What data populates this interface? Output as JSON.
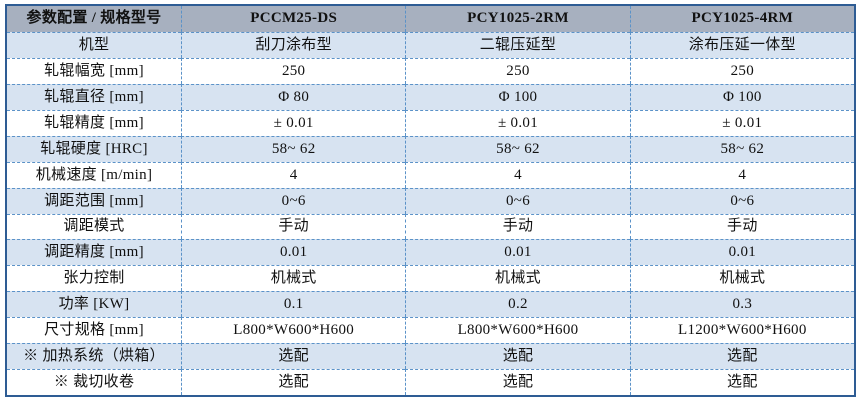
{
  "colors": {
    "header-bg": "#a7b0bf",
    "row-alt-bg": "#d7e3f1",
    "outer-border": "#2e5c94",
    "grid-dash": "#5b92c8",
    "text": "#111111"
  },
  "table": {
    "header": [
      "参数配置 / 规格型号",
      "PCCM25-DS",
      "PCY1025-2RM",
      "PCY1025-4RM"
    ],
    "rows": [
      {
        "label": "机型",
        "values": [
          "刮刀涂布型",
          "二辊压延型",
          "涂布压延一体型"
        ]
      },
      {
        "label": "轧辊幅宽 [mm]",
        "values": [
          "250",
          "250",
          "250"
        ]
      },
      {
        "label": "轧辊直径 [mm]",
        "values": [
          "Φ 80",
          "Φ 100",
          "Φ 100"
        ]
      },
      {
        "label": "轧辊精度 [mm]",
        "values": [
          "± 0.01",
          "± 0.01",
          "± 0.01"
        ]
      },
      {
        "label": "轧辊硬度 [HRC]",
        "values": [
          "58~ 62",
          "58~ 62",
          "58~ 62"
        ]
      },
      {
        "label": "机械速度 [m/min]",
        "values": [
          "4",
          "4",
          "4"
        ]
      },
      {
        "label": "调距范围 [mm]",
        "values": [
          "0~6",
          "0~6",
          "0~6"
        ]
      },
      {
        "label": "调距模式",
        "values": [
          "手动",
          "手动",
          "手动"
        ]
      },
      {
        "label": "调距精度 [mm]",
        "values": [
          "0.01",
          "0.01",
          "0.01"
        ]
      },
      {
        "label": "张力控制",
        "values": [
          "机械式",
          "机械式",
          "机械式"
        ]
      },
      {
        "label": "功率 [KW]",
        "values": [
          "0.1",
          "0.2",
          "0.3"
        ]
      },
      {
        "label": "尺寸规格 [mm]",
        "values": [
          "L800*W600*H600",
          "L800*W600*H600",
          "L1200*W600*H600"
        ]
      },
      {
        "label": "※ 加热系统（烘箱）",
        "values": [
          "选配",
          "选配",
          "选配"
        ]
      },
      {
        "label": "※ 裁切收卷",
        "values": [
          "选配",
          "选配",
          "选配"
        ]
      }
    ]
  }
}
